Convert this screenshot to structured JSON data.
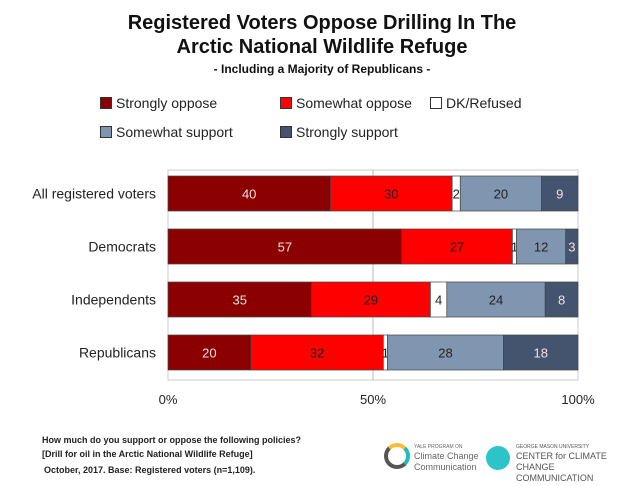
{
  "chart_data": {
    "type": "bar",
    "orientation": "horizontal",
    "stacked": true,
    "title": "Registered Voters Oppose Drilling In The Arctic National Wildlife Refuge",
    "subtitle": "- Including a Majority of Republicans -",
    "categories": [
      "All registered voters",
      "Democrats",
      "Independents",
      "Republicans"
    ],
    "series": [
      {
        "name": "Strongly oppose",
        "color": "#8B0000",
        "values": [
          40,
          57,
          35,
          20
        ]
      },
      {
        "name": "Somewhat oppose",
        "color": "#FF0000",
        "values": [
          30,
          27,
          29,
          32
        ]
      },
      {
        "name": "DK/Refused",
        "color": "#FFFFFF",
        "values": [
          2,
          1,
          4,
          1
        ]
      },
      {
        "name": "Somewhat support",
        "color": "#8096B0",
        "values": [
          20,
          12,
          24,
          28
        ]
      },
      {
        "name": "Strongly support",
        "color": "#44546E",
        "values": [
          9,
          3,
          8,
          18
        ]
      }
    ],
    "x_ticks": [
      "0%",
      "50%",
      "100%"
    ],
    "xlim": [
      0,
      100
    ],
    "grid": true,
    "legend": "top"
  },
  "title_line1": "Registered Voters Oppose Drilling In The",
  "title_line2": "Arctic National Wildlife Refuge",
  "footer": {
    "line1": "How much do you support or oppose the following policies?",
    "line2": "[Drill for oil in the Arctic National Wildlife Refuge]",
    "line3": "October, 2017. Base: Registered voters (n=1,109)."
  },
  "logos": {
    "yale_small": "YALE PROGRAM ON",
    "yale1": "Climate Change",
    "yale2": "Communication",
    "gmu_small": "GEORGE MASON UNIVERSITY",
    "gmu1": "CENTER for CLIMATE CHANGE",
    "gmu2": "COMMUNICATION"
  }
}
